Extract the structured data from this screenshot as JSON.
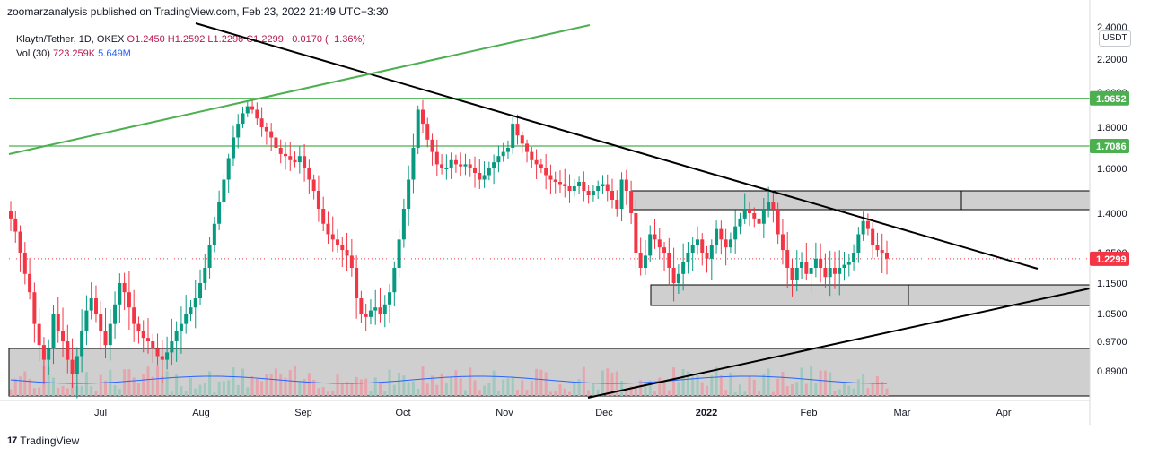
{
  "header": {
    "published": "zoomarzanalysis published on TradingView.com, Feb 23, 2022 21:49 UTC+3:30"
  },
  "legend": {
    "symbol": "Klaytn/Tether, 1D, OKEX",
    "ohlc": "O1.2450  H1.2592  L1.2296  C1.2299  −0.0170 (−1.36%)",
    "vol_label": "Vol (30)",
    "vol_value": "723.259K",
    "vol_ma": "5.649M"
  },
  "currency_badge": "USDT",
  "footer": {
    "logo": "17",
    "brand": "TradingView"
  },
  "chart_data": {
    "type": "candlestick",
    "title": "Klaytn/Tether, 1D, OKEX",
    "x_ticks": [
      "Jul",
      "Aug",
      "Sep",
      "Oct",
      "Nov",
      "Dec",
      "2022",
      "Feb",
      "Mar",
      "Apr"
    ],
    "y_ticks": [
      "2.4000",
      "2.2000",
      "2.0000",
      "1.8000",
      "1.6000",
      "1.4000",
      "1.2500",
      "1.1500",
      "1.0500",
      "0.9700",
      "0.8900"
    ],
    "ylim": [
      0.82,
      2.42
    ],
    "price_labels": [
      {
        "value": 1.9652,
        "text": "1.9652",
        "color": "#4caf50"
      },
      {
        "value": 1.7086,
        "text": "1.7086",
        "color": "#4caf50"
      },
      {
        "value": 1.2299,
        "text": "1.2299",
        "color": "#f23645"
      }
    ],
    "horizontal_lines": [
      1.9652,
      1.7086
    ],
    "last_close": 1.2299,
    "colors": {
      "up": "#089981",
      "down": "#f23645",
      "green_line": "#4caf50",
      "trend": "#000000",
      "ma": "#2962ff"
    },
    "grid": false,
    "candles_close": [
      1.38,
      1.33,
      1.25,
      1.18,
      1.12,
      1.02,
      0.96,
      0.92,
      0.95,
      1.05,
      1.0,
      0.97,
      0.92,
      0.88,
      0.93,
      1.0,
      1.06,
      1.1,
      1.05,
      1.0,
      0.96,
      1.02,
      1.08,
      1.15,
      1.12,
      1.07,
      1.02,
      1.0,
      0.98,
      0.97,
      0.95,
      0.93,
      0.92,
      0.94,
      0.97,
      1.0,
      1.02,
      1.05,
      1.07,
      1.1,
      1.15,
      1.2,
      1.28,
      1.36,
      1.45,
      1.55,
      1.65,
      1.75,
      1.82,
      1.88,
      1.92,
      1.9,
      1.85,
      1.8,
      1.78,
      1.75,
      1.7,
      1.67,
      1.66,
      1.64,
      1.63,
      1.66,
      1.6,
      1.55,
      1.5,
      1.42,
      1.36,
      1.32,
      1.3,
      1.28,
      1.26,
      1.24,
      1.2,
      1.1,
      1.05,
      1.04,
      1.06,
      1.07,
      1.05,
      1.08,
      1.12,
      1.2,
      1.3,
      1.42,
      1.55,
      1.7,
      1.9,
      1.82,
      1.74,
      1.68,
      1.62,
      1.6,
      1.6,
      1.64,
      1.62,
      1.61,
      1.62,
      1.6,
      1.58,
      1.55,
      1.57,
      1.6,
      1.63,
      1.66,
      1.68,
      1.7,
      1.82,
      1.76,
      1.72,
      1.68,
      1.64,
      1.62,
      1.6,
      1.57,
      1.55,
      1.54,
      1.53,
      1.52,
      1.5,
      1.52,
      1.54,
      1.5,
      1.48,
      1.5,
      1.52,
      1.53,
      1.5,
      1.46,
      1.42,
      1.55,
      1.5,
      1.4,
      1.25,
      1.2,
      1.24,
      1.32,
      1.3,
      1.27,
      1.25,
      1.2,
      1.15,
      1.18,
      1.22,
      1.25,
      1.28,
      1.3,
      1.25,
      1.23,
      1.28,
      1.34,
      1.3,
      1.27,
      1.3,
      1.35,
      1.38,
      1.42,
      1.4,
      1.38,
      1.36,
      1.42,
      1.45,
      1.42,
      1.32,
      1.26,
      1.2,
      1.16,
      1.2,
      1.22,
      1.18,
      1.2,
      1.23,
      1.2,
      1.17,
      1.2,
      1.18,
      1.2,
      1.21,
      1.22,
      1.25,
      1.32,
      1.37,
      1.34,
      1.28,
      1.26,
      1.25,
      1.23
    ],
    "volume_ma": "blue moving average overlay",
    "annotations": [
      "descending trendline",
      "ascending trendline",
      "upper green channel line",
      "supply zone box",
      "demand zone box",
      "volume range box"
    ]
  }
}
